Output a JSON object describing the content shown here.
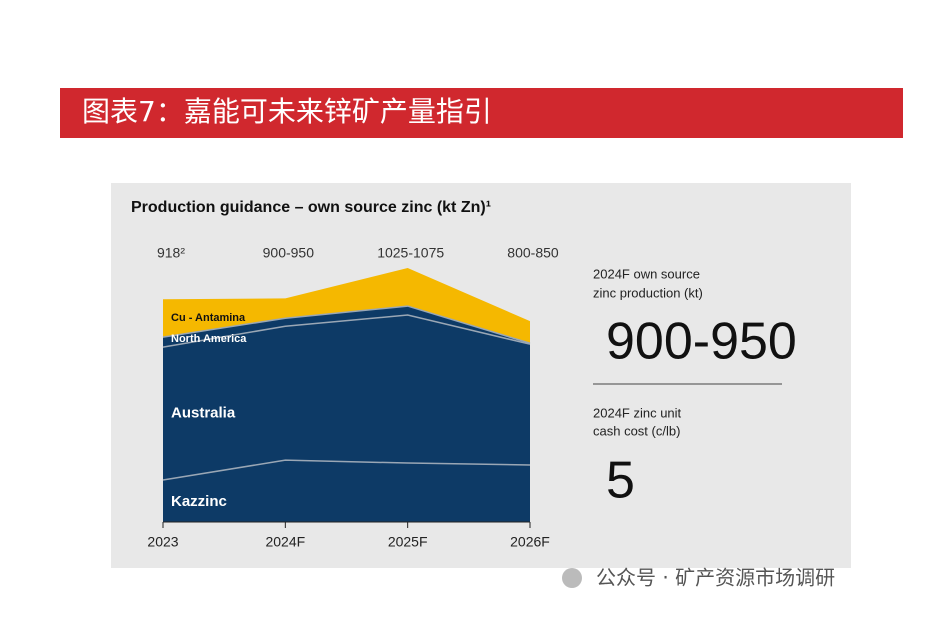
{
  "header": {
    "title": "图表7：嘉能可未来锌矿产量指引"
  },
  "chart_data": {
    "type": "stacked-area",
    "title": "Production guidance – own source zinc (kt Zn)¹",
    "categories": [
      "2023",
      "2024F",
      "2025F",
      "2026F"
    ],
    "total_labels": [
      "918²",
      "900-950",
      "1025-1075",
      "800-850"
    ],
    "series": [
      {
        "name": "Kazzinc",
        "color": "#0d3a66",
        "values": [
          173,
          255,
          243,
          235
        ]
      },
      {
        "name": "Australia",
        "color": "#0d3a66",
        "values": [
          548,
          552,
          610,
          498
        ]
      },
      {
        "name": "North America",
        "color": "#0d3a66",
        "values": [
          41,
          33,
          37,
          4
        ]
      },
      {
        "name": "Cu - Antamina",
        "color": "#f5b800",
        "values": [
          156,
          82,
          157,
          91
        ]
      }
    ]
  },
  "side": {
    "production_label": [
      "2024F own source",
      "zinc production (kt)"
    ],
    "production_value": "900-950",
    "cost_label": [
      "2024F zinc unit",
      "cash cost (c/lb)"
    ],
    "cost_value": "5"
  },
  "watermark": "公众号 · 矿产资源市场调研"
}
